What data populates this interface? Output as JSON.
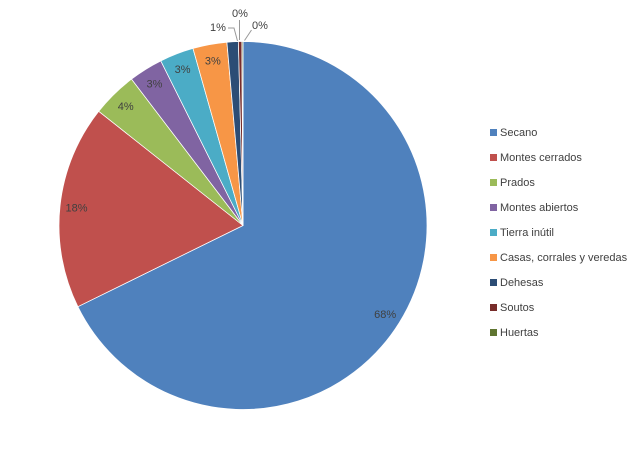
{
  "page": {
    "background": "#ffffff"
  },
  "chart_data": {
    "type": "pie",
    "title": "",
    "categories": [
      "Secano",
      "Montes cerrados",
      "Prados",
      "Montes abiertos",
      "Tierra inútil",
      "Casas, corrales y veredas",
      "Dehesas",
      "Soutos",
      "Huertas"
    ],
    "values": [
      68,
      18,
      4,
      3,
      3,
      3,
      1,
      0,
      0
    ],
    "display_labels": [
      "68%",
      "18%",
      "4%",
      "3%",
      "3%",
      "3%",
      "1%",
      "0%",
      "0%"
    ],
    "render_values": [
      68,
      18,
      4,
      3,
      3,
      3,
      1,
      0.3,
      0.1
    ],
    "colors": [
      "#4F81BD",
      "#C0504D",
      "#9BBB59",
      "#8064A2",
      "#4BACC6",
      "#F79646",
      "#2C4D75",
      "#772C2A",
      "#5F7530"
    ],
    "legend_position": "right",
    "label_text_color": "#404040",
    "leader_line_color": "#999999",
    "slice_border_color": "#ffffff"
  }
}
